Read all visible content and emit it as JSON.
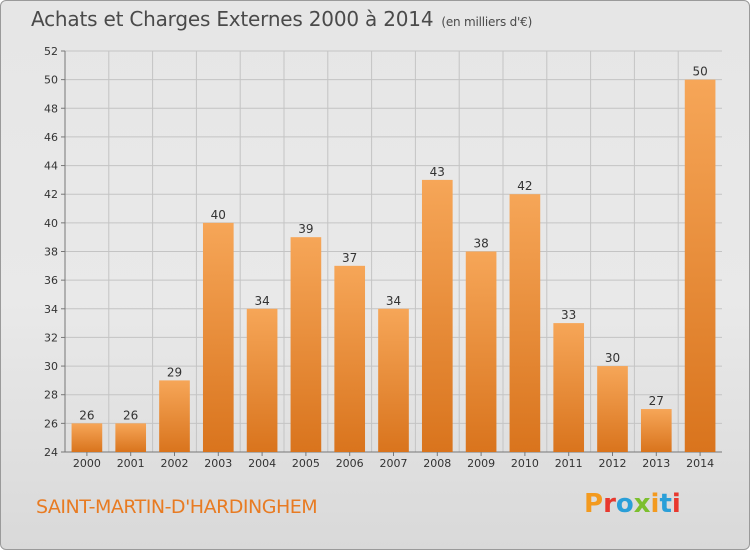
{
  "header": {
    "title": "Achats et Charges Externes 2000 à 2014",
    "unit": "(en milliers d'€)"
  },
  "footer": {
    "town": "SAINT-MARTIN-D'HARDINGHEM",
    "logo_letters": [
      "P",
      "r",
      "o",
      "x",
      "i",
      "t",
      "i"
    ],
    "logo_colors": [
      "#f39a1f",
      "#e8382e",
      "#2a9fd8",
      "#7cbf2e",
      "#f39a1f",
      "#2a9fd8",
      "#e8382e"
    ]
  },
  "chart_data": {
    "type": "bar",
    "title": "Achats et Charges Externes 2000 à 2014",
    "subtitle": "(en milliers d'€)",
    "categories": [
      "2000",
      "2001",
      "2002",
      "2003",
      "2004",
      "2005",
      "2006",
      "2007",
      "2008",
      "2009",
      "2010",
      "2011",
      "2012",
      "2013",
      "2014"
    ],
    "values": [
      26,
      26,
      29,
      40,
      34,
      39,
      37,
      34,
      43,
      38,
      42,
      33,
      30,
      27,
      50
    ],
    "ylim": [
      24,
      52
    ],
    "yticks": [
      24,
      26,
      28,
      30,
      32,
      34,
      36,
      38,
      40,
      42,
      44,
      46,
      48,
      50,
      52
    ],
    "grid": true,
    "bar_color_top": "#f6a658",
    "bar_color_bottom": "#d9741d"
  }
}
